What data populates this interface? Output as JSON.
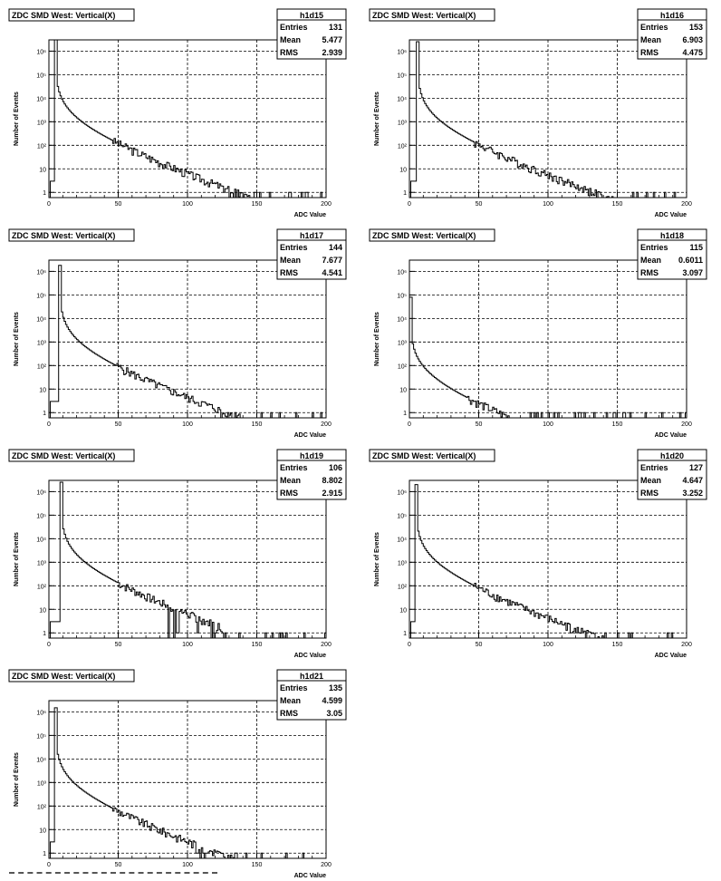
{
  "chart_data": [
    {
      "type": "histogram",
      "title": "ZDC SMD West: Vertical(X)",
      "xlabel": "ADC Value",
      "ylabel": "Number of Events",
      "xlim": [
        0,
        200
      ],
      "ylim_log": [
        0.6,
        3000000
      ],
      "log_y": true,
      "grid": true,
      "xticks": [
        "0",
        "50",
        "100",
        "150",
        "200"
      ],
      "stats": {
        "name": "h1d15",
        "rows": [
          [
            "Entries",
            "131"
          ],
          [
            "Mean",
            "5.477"
          ],
          [
            "RMS",
            "2.939"
          ]
        ]
      },
      "peak": {
        "adc": 5,
        "max": 3000000,
        "decay": 0.07,
        "cutoff": 165
      }
    },
    {
      "type": "histogram",
      "title": "ZDC SMD West: Vertical(X)",
      "xlabel": "ADC Value",
      "ylabel": "Number of Events",
      "xlim": [
        0,
        200
      ],
      "ylim_log": [
        0.6,
        3000000
      ],
      "log_y": true,
      "grid": true,
      "xticks": [
        "0",
        "50",
        "100",
        "150",
        "200"
      ],
      "stats": {
        "name": "h1d16",
        "rows": [
          [
            "Entries",
            "153"
          ],
          [
            "Mean",
            "6.903"
          ],
          [
            "RMS",
            "4.475"
          ]
        ]
      },
      "peak": {
        "adc": 6,
        "max": 2500000,
        "decay": 0.066,
        "cutoff": 175
      }
    },
    {
      "type": "histogram",
      "title": "ZDC SMD West: Vertical(X)",
      "xlabel": "ADC Value",
      "ylabel": "Number of Events",
      "xlim": [
        0,
        200
      ],
      "ylim_log": [
        0.6,
        3000000
      ],
      "log_y": true,
      "grid": true,
      "xticks": [
        "0",
        "50",
        "100",
        "150",
        "200"
      ],
      "stats": {
        "name": "h1d17",
        "rows": [
          [
            "Entries",
            "144"
          ],
          [
            "Mean",
            "7.677"
          ],
          [
            "RMS",
            "4.541"
          ]
        ]
      },
      "peak": {
        "adc": 8,
        "max": 1800000,
        "decay": 0.075,
        "cutoff": 160
      }
    },
    {
      "type": "histogram",
      "title": "ZDC SMD West: Vertical(X)",
      "xlabel": "ADC Value",
      "ylabel": "Number of Events",
      "xlim": [
        0,
        200
      ],
      "ylim_log": [
        0.6,
        3000000
      ],
      "log_y": true,
      "grid": true,
      "xticks": [
        "0",
        "50",
        "100",
        "150",
        "200"
      ],
      "stats": {
        "name": "h1d18",
        "rows": [
          [
            "Entries",
            "115"
          ],
          [
            "Mean",
            "0.6011"
          ],
          [
            "RMS",
            "3.097"
          ]
        ]
      },
      "peak": {
        "adc": 1,
        "max": 80000,
        "decay": 0.085,
        "cutoff": 125
      }
    },
    {
      "type": "histogram",
      "title": "ZDC SMD West: Vertical(X)",
      "xlabel": "ADC Value",
      "ylabel": "Number of Events",
      "xlim": [
        0,
        200
      ],
      "ylim_log": [
        0.6,
        3000000
      ],
      "log_y": true,
      "grid": true,
      "xticks": [
        "0",
        "50",
        "100",
        "150",
        "200"
      ],
      "stats": {
        "name": "h1d19",
        "rows": [
          [
            "Entries",
            "106"
          ],
          [
            "Mean",
            "8.802"
          ],
          [
            "RMS",
            "2.915"
          ]
        ]
      },
      "peak": {
        "adc": 9,
        "max": 2500000,
        "decay": 0.1,
        "cutoff": 125
      }
    },
    {
      "type": "histogram",
      "title": "ZDC SMD West: Vertical(X)",
      "xlabel": "ADC Value",
      "ylabel": "Number of Events",
      "xlim": [
        0,
        200
      ],
      "ylim_log": [
        0.6,
        3000000
      ],
      "log_y": true,
      "grid": true,
      "xticks": [
        "0",
        "50",
        "100",
        "150",
        "200"
      ],
      "stats": {
        "name": "h1d20",
        "rows": [
          [
            "Entries",
            "127"
          ],
          [
            "Mean",
            "4.647"
          ],
          [
            "RMS",
            "3.252"
          ]
        ]
      },
      "peak": {
        "adc": 5,
        "max": 2000000,
        "decay": 0.085,
        "cutoff": 152
      }
    },
    {
      "type": "histogram",
      "title": "ZDC SMD West: Vertical(X)",
      "xlabel": "ADC Value",
      "ylabel": "Number of Events",
      "xlim": [
        0,
        200
      ],
      "ylim_log": [
        0.6,
        3000000
      ],
      "log_y": true,
      "grid": true,
      "xticks": [
        "0",
        "50",
        "100",
        "150",
        "200"
      ],
      "stats": {
        "name": "h1d21",
        "rows": [
          [
            "Entries",
            "135"
          ],
          [
            "Mean",
            "4.599"
          ],
          [
            "RMS",
            "3.05"
          ]
        ]
      },
      "peak": {
        "adc": 5,
        "max": 1500000,
        "decay": 0.085,
        "cutoff": 145
      }
    }
  ]
}
